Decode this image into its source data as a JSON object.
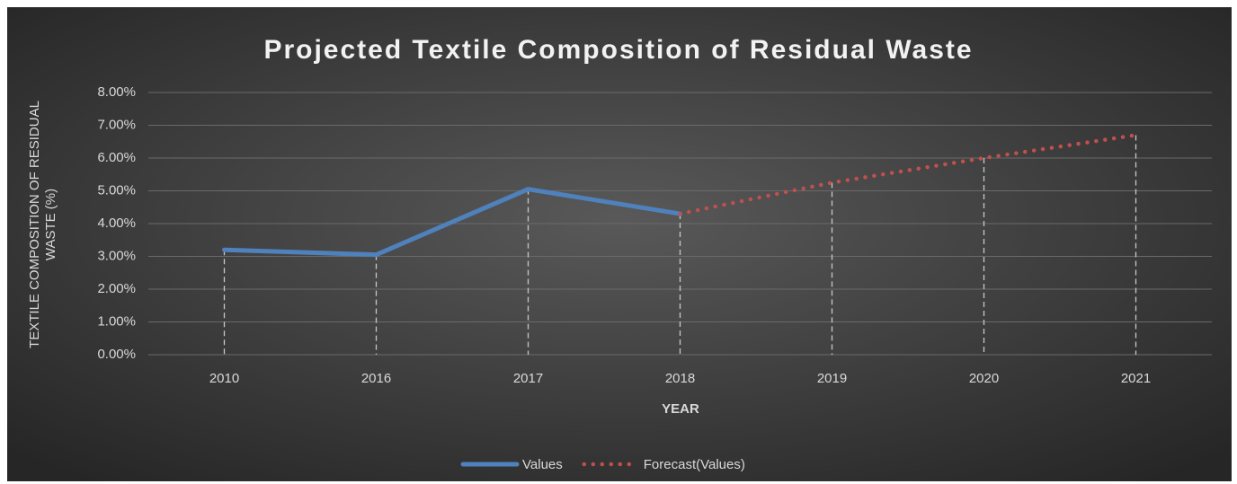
{
  "chart_data": {
    "type": "line",
    "title": "Projected Textile Composition of Residual Waste",
    "x_label": "YEAR",
    "y_label": "TEXTILE COMPOSITION OF RESIDUAL WASTE (%)",
    "categories": [
      "2010",
      "2016",
      "2017",
      "2018",
      "2019",
      "2020",
      "2021"
    ],
    "series": [
      {
        "name": "Values",
        "color": "#4f81bd",
        "style": "solid",
        "values": [
          3.2,
          3.05,
          5.05,
          4.3,
          null,
          null,
          null
        ]
      },
      {
        "name": "Forecast(Values)",
        "color": "#c0504d",
        "style": "dotted",
        "values": [
          null,
          null,
          null,
          4.3,
          5.25,
          6.0,
          6.7
        ]
      }
    ],
    "ylim": [
      0,
      8
    ],
    "yticks": [
      {
        "value": 0,
        "label": "0.00%"
      },
      {
        "value": 1,
        "label": "1.00%"
      },
      {
        "value": 2,
        "label": "2.00%"
      },
      {
        "value": 3,
        "label": "3.00%"
      },
      {
        "value": 4,
        "label": "4.00%"
      },
      {
        "value": 5,
        "label": "5.00%"
      },
      {
        "value": 6,
        "label": "6.00%"
      },
      {
        "value": 7,
        "label": "7.00%"
      },
      {
        "value": 8,
        "label": "8.00%"
      }
    ],
    "grid": true,
    "drop_lines": true,
    "legend": "bottom"
  }
}
